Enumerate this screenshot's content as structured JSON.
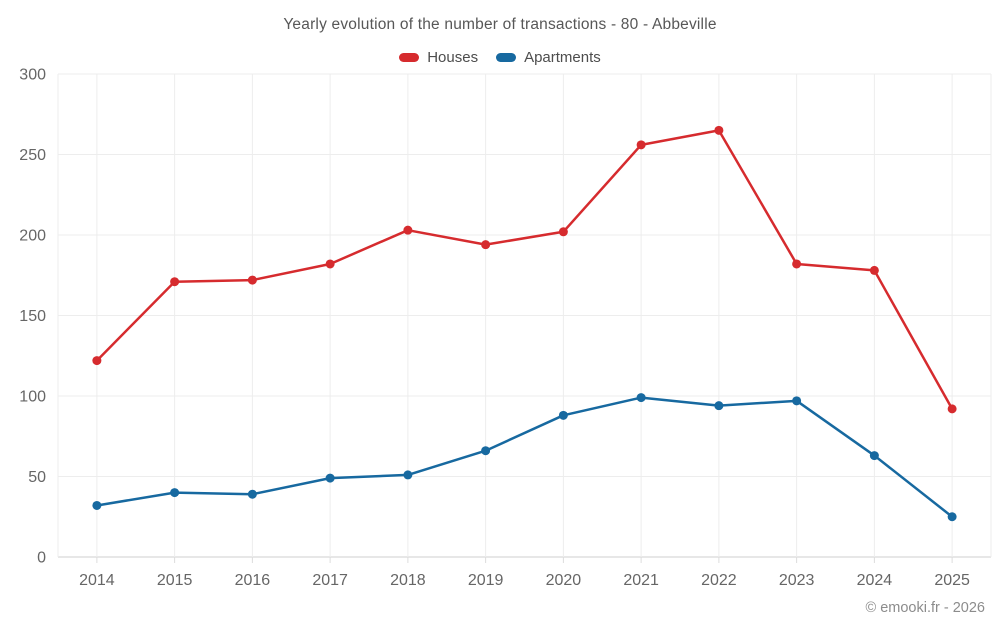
{
  "title": "Yearly evolution of the number of transactions - 80 - Abbeville",
  "footer": "© emooki.fr - 2026",
  "colors": {
    "houses": "#d62b2e",
    "apartments": "#1769a0",
    "grid": "#ededed",
    "axis_line": "#cfcfcf",
    "tick": "#dcdcdc",
    "axis_text": "#666666"
  },
  "chart_data": {
    "type": "line",
    "title": "Yearly evolution of the number of transactions - 80 - Abbeville",
    "categories": [
      "2014",
      "2015",
      "2016",
      "2017",
      "2018",
      "2019",
      "2020",
      "2021",
      "2022",
      "2023",
      "2024",
      "2025"
    ],
    "series": [
      {
        "name": "Houses",
        "color": "#d62b2e",
        "values": [
          122,
          171,
          172,
          182,
          203,
          194,
          202,
          256,
          265,
          182,
          178,
          92
        ]
      },
      {
        "name": "Apartments",
        "color": "#1769a0",
        "values": [
          32,
          40,
          39,
          49,
          51,
          66,
          88,
          99,
          94,
          97,
          63,
          25
        ]
      }
    ],
    "xlabel": "",
    "ylabel": "",
    "ylim": [
      0,
      300
    ],
    "yticks": [
      0,
      50,
      100,
      150,
      200,
      250,
      300
    ],
    "grid": true,
    "legend_position": "top"
  }
}
